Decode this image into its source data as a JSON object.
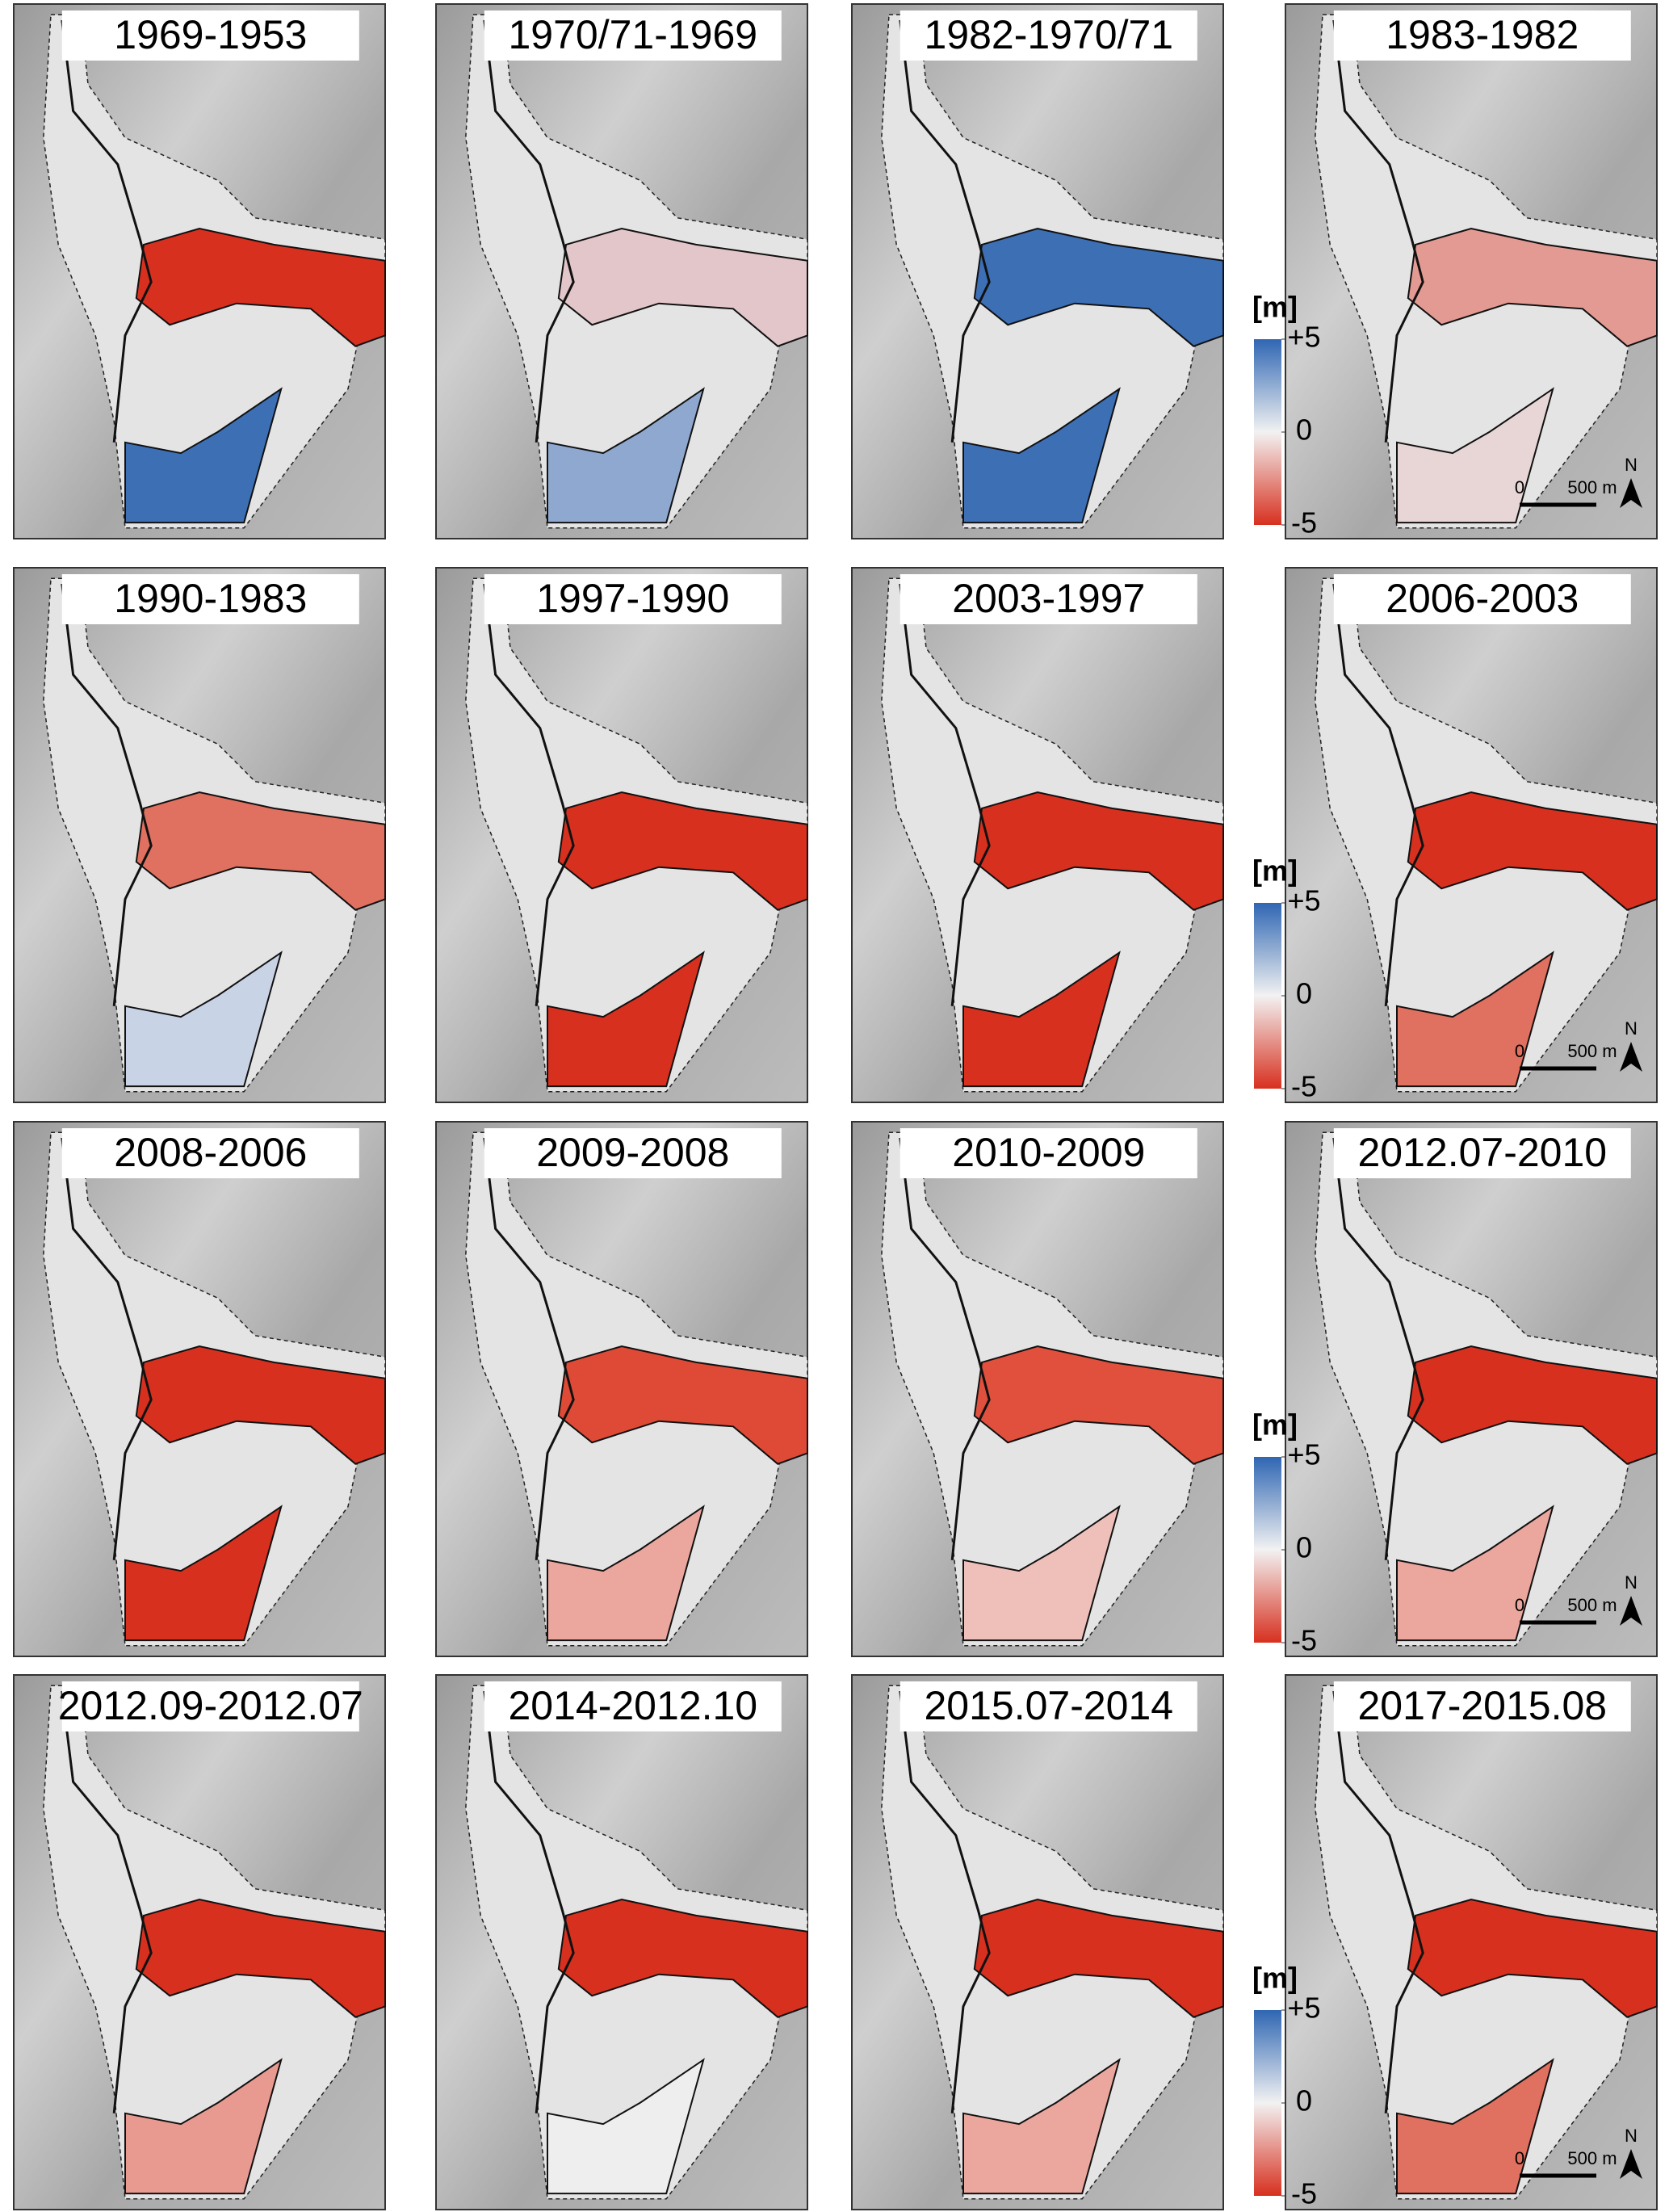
{
  "panels": [
    {
      "title": "1969-1953",
      "tongue_color": "#d7301f",
      "basin_color": "#3d6fb5"
    },
    {
      "title": "1970/71-1969",
      "tongue_color": "#e3c6c9",
      "basin_color": "#8fa8d0"
    },
    {
      "title": "1982-1970/71",
      "tongue_color": "#3d6fb5",
      "basin_color": "#3d6fb5"
    },
    {
      "title": "1983-1982",
      "tongue_color": "#e39a93",
      "basin_color": "#e8d6d6"
    },
    {
      "title": "1990-1983",
      "tongue_color": "#e0705f",
      "basin_color": "#c9d3e6"
    },
    {
      "title": "1997-1990",
      "tongue_color": "#d7301f",
      "basin_color": "#d7301f"
    },
    {
      "title": "2003-1997",
      "tongue_color": "#d7301f",
      "basin_color": "#d7301f"
    },
    {
      "title": "2006-2003",
      "tongue_color": "#d7301f",
      "basin_color": "#e0705f"
    },
    {
      "title": "2008-2006",
      "tongue_color": "#d7301f",
      "basin_color": "#d7301f"
    },
    {
      "title": "2009-2008",
      "tongue_color": "#de4a36",
      "basin_color": "#eba69d"
    },
    {
      "title": "2010-2009",
      "tongue_color": "#e0503d",
      "basin_color": "#efc0ba"
    },
    {
      "title": "2012.07-2010",
      "tongue_color": "#d7301f",
      "basin_color": "#eba69d"
    },
    {
      "title": "2012.09-2012.07",
      "tongue_color": "#d7301f",
      "basin_color": "#e89a90"
    },
    {
      "title": "2014-2012.10",
      "tongue_color": "#d7301f",
      "basin_color": "#eee"
    },
    {
      "title": "2015.07-2014",
      "tongue_color": "#d7301f",
      "basin_color": "#eba69d"
    },
    {
      "title": "2017-2015.08",
      "tongue_color": "#d7301f",
      "basin_color": "#e0705f"
    }
  ],
  "legend": {
    "unit": "[m]",
    "lim": [
      -5,
      5
    ],
    "ticks": [
      {
        "value": 5,
        "label": "+5"
      },
      0,
      -5
    ],
    "colors": [
      "#d7301f",
      "#f2f2f2",
      "#2f66b3"
    ]
  },
  "scale_bar": {
    "labels": [
      "0",
      "500 m"
    ],
    "north": "N"
  }
}
